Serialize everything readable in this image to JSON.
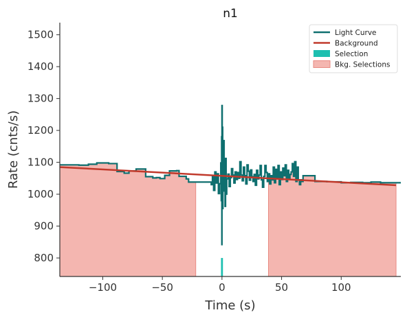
{
  "chart_data": {
    "type": "line",
    "title": "n1",
    "xlabel": "Time (s)",
    "ylabel": "Rate (cnts/s)",
    "xlim": [
      -136,
      150
    ],
    "ylim": [
      742,
      1538
    ],
    "xticks": [
      -100,
      -50,
      0,
      50,
      100
    ],
    "xtick_labels": [
      "−100",
      "−50",
      "0",
      "50",
      "100"
    ],
    "yticks": [
      800,
      900,
      1000,
      1100,
      1200,
      1300,
      1400,
      1500
    ],
    "ytick_labels": [
      "800",
      "900",
      "1000",
      "1100",
      "1200",
      "1300",
      "1400",
      "1500"
    ],
    "grid": false,
    "legend_position": "top-right",
    "colors": {
      "light_curve": "#0e6f6f",
      "background": "#c0392b",
      "selection": "#1dbfb0",
      "bkg_selection_fill": "#f4b6b0",
      "bkg_selection_edge": "#e88a82"
    },
    "legend": [
      {
        "label": "Light Curve",
        "kind": "line",
        "color_key": "light_curve"
      },
      {
        "label": "Background",
        "kind": "line",
        "color_key": "background"
      },
      {
        "label": "Selection",
        "kind": "patch",
        "color_key": "selection"
      },
      {
        "label": "Bkg. Selections",
        "kind": "patch",
        "color_key": "bkg_selection_fill"
      }
    ],
    "light_curve_steps": [
      [
        -136,
        1092
      ],
      [
        -120,
        1091
      ],
      [
        -112,
        1094
      ],
      [
        -105,
        1098
      ],
      [
        -95,
        1096
      ],
      [
        -88,
        1071
      ],
      [
        -82,
        1066
      ],
      [
        -78,
        1073
      ],
      [
        -72,
        1079
      ],
      [
        -64,
        1055
      ],
      [
        -58,
        1051
      ],
      [
        -55,
        1052
      ],
      [
        -52,
        1049
      ],
      [
        -48,
        1059
      ],
      [
        -44,
        1073
      ],
      [
        -38,
        1074
      ],
      [
        -36,
        1056
      ],
      [
        -30,
        1048
      ],
      [
        -28,
        1038
      ],
      [
        -15,
        1038
      ],
      [
        -9,
        1030
      ],
      [
        -8,
        1058
      ],
      [
        -7,
        1012
      ],
      [
        -6,
        1070
      ],
      [
        -5,
        1035
      ],
      [
        -4,
        1064
      ],
      [
        -3,
        1002
      ],
      [
        -2,
        1033
      ],
      [
        -1,
        1098
      ],
      [
        -0.6,
        980
      ],
      [
        -0.3,
        1180
      ],
      [
        -0.1,
        842
      ],
      [
        0,
        1278
      ],
      [
        0.2,
        960
      ],
      [
        0.4,
        1210
      ],
      [
        0.6,
        955
      ],
      [
        0.8,
        1145
      ],
      [
        1,
        1010
      ],
      [
        1.4,
        1168
      ],
      [
        1.8,
        1018
      ],
      [
        2.2,
        1078
      ],
      [
        2.6,
        962
      ],
      [
        3,
        1112
      ],
      [
        3.5,
        1000
      ],
      [
        4,
        1048
      ],
      [
        5,
        1063
      ],
      [
        6,
        1024
      ],
      [
        7,
        1052
      ],
      [
        8,
        1080
      ],
      [
        9,
        1060
      ],
      [
        10,
        1035
      ],
      [
        11,
        1070
      ],
      [
        12,
        1046
      ],
      [
        13,
        1068
      ],
      [
        14,
        1050
      ],
      [
        15,
        1102
      ],
      [
        16,
        1060
      ],
      [
        17,
        1042
      ],
      [
        18,
        1085
      ],
      [
        19,
        1058
      ],
      [
        20,
        1032
      ],
      [
        21,
        1092
      ],
      [
        22,
        1072
      ],
      [
        23,
        1044
      ],
      [
        24,
        1076
      ],
      [
        25,
        1055
      ],
      [
        26,
        1040
      ],
      [
        27,
        1062
      ],
      [
        28,
        1028
      ],
      [
        29,
        1075
      ],
      [
        30,
        1048
      ],
      [
        31,
        1060
      ],
      [
        32,
        1090
      ],
      [
        33,
        1045
      ],
      [
        34,
        1022
      ],
      [
        35,
        1056
      ],
      [
        36,
        1090
      ],
      [
        37,
        1068
      ],
      [
        38,
        1040
      ],
      [
        39,
        1064
      ],
      [
        40,
        1032
      ],
      [
        41,
        1058
      ],
      [
        42,
        1045
      ],
      [
        43,
        1085
      ],
      [
        44,
        1036
      ],
      [
        45,
        1078
      ],
      [
        46,
        1052
      ],
      [
        47,
        1090
      ],
      [
        48,
        1030
      ],
      [
        49,
        1070
      ],
      [
        50,
        1046
      ],
      [
        51,
        1082
      ],
      [
        52,
        1058
      ],
      [
        53,
        1092
      ],
      [
        54,
        1040
      ],
      [
        55,
        1075
      ],
      [
        56,
        1048
      ],
      [
        57,
        1062
      ],
      [
        58,
        1070
      ],
      [
        59,
        1096
      ],
      [
        60,
        1056
      ],
      [
        61,
        1102
      ],
      [
        62,
        1040
      ],
      [
        63,
        1085
      ],
      [
        64,
        1045
      ],
      [
        65,
        1030
      ],
      [
        66,
        1045
      ],
      [
        67,
        1040
      ],
      [
        68,
        1058
      ],
      [
        78,
        1040
      ],
      [
        88,
        1039
      ],
      [
        100,
        1036
      ],
      [
        108,
        1037
      ],
      [
        118,
        1036
      ],
      [
        125,
        1038
      ],
      [
        133,
        1036
      ],
      [
        150,
        1036
      ]
    ],
    "background_fit": {
      "x": [
        -136,
        146
      ],
      "y": [
        1085,
        1028
      ]
    },
    "selection_interval": [
      -0.8,
      0.8
    ],
    "bkg_selections": [
      {
        "from": -136,
        "to": -22
      },
      {
        "from": 39,
        "to": 146
      }
    ]
  }
}
